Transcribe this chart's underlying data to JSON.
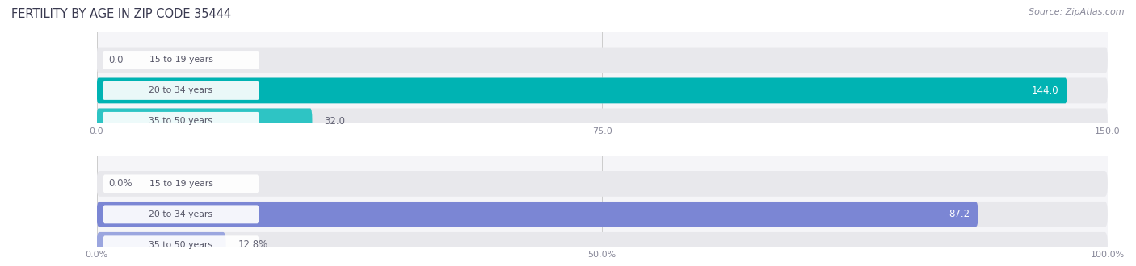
{
  "title": "FERTILITY BY AGE IN ZIP CODE 35444",
  "source": "Source: ZipAtlas.com",
  "top_chart": {
    "categories": [
      "15 to 19 years",
      "20 to 34 years",
      "35 to 50 years"
    ],
    "values": [
      0.0,
      144.0,
      32.0
    ],
    "xmax": 150,
    "xticks": [
      0.0,
      75.0,
      150.0
    ],
    "xtick_labels": [
      "0.0",
      "75.0",
      "150.0"
    ],
    "bar_color_light": "#7dcfcf",
    "bar_color_mid": "#00b0b0",
    "bar_color_dark": "#2ababa",
    "bar_colors": [
      "#7dcfcf",
      "#00b3b3",
      "#2ec4c4"
    ]
  },
  "bottom_chart": {
    "categories": [
      "15 to 19 years",
      "20 to 34 years",
      "35 to 50 years"
    ],
    "values": [
      0.0,
      87.2,
      12.8
    ],
    "xmax": 100,
    "xticks": [
      0.0,
      50.0,
      100.0
    ],
    "xtick_labels": [
      "0.0%",
      "50.0%",
      "100.0%"
    ],
    "bar_colors": [
      "#adb5e8",
      "#7b86d4",
      "#9ba6df"
    ]
  },
  "bg_bar_color": "#e8e8ec",
  "label_pill_color": "#ffffff",
  "label_text_color": "#555566",
  "value_inside_color": "#ffffff",
  "value_outside_color": "#666677",
  "title_color": "#3a3a50",
  "source_color": "#888899",
  "fig_bg": "#ffffff",
  "ax_bg": "#f5f5f8"
}
